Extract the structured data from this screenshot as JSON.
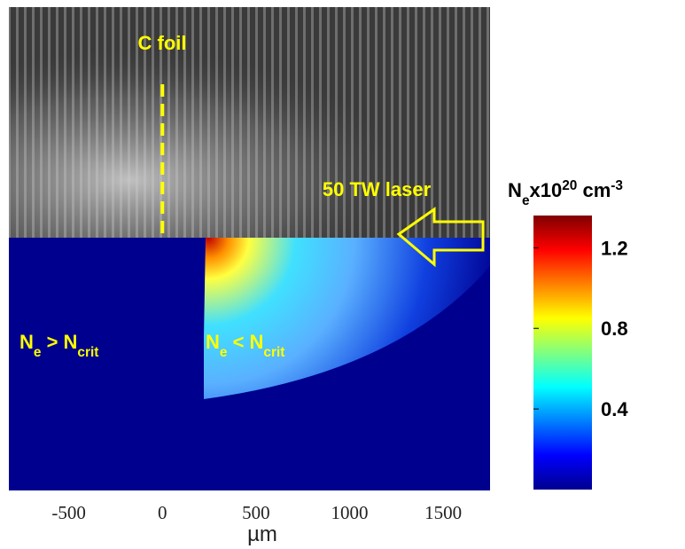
{
  "chart_data": {
    "type": "heatmap-figure",
    "x_label": "µm",
    "xlim": [
      -820,
      1750
    ],
    "xticks": [
      -500,
      0,
      500,
      1000,
      1500
    ],
    "foil_x": 0,
    "annotations": {
      "foil": "C foil",
      "laser": "50 TW laser",
      "left_region": [
        {
          "text": "N"
        },
        {
          "text": "e",
          "sub": true
        },
        {
          "text": " > N"
        },
        {
          "text": "crit",
          "sub": true
        }
      ],
      "right_region": [
        {
          "text": "N"
        },
        {
          "text": "e",
          "sub": true
        },
        {
          "text": " < N"
        },
        {
          "text": "crit",
          "sub": true
        }
      ]
    },
    "colorbar": {
      "label": [
        {
          "text": "N"
        },
        {
          "text": "e",
          "sub": true
        },
        {
          "text": "x10"
        },
        {
          "text": "20",
          "sup": true
        },
        {
          "text": " cm"
        },
        {
          "text": "-3",
          "sup": true
        }
      ],
      "clim": [
        0,
        1.36
      ],
      "ticks": [
        1.2,
        0.8,
        0.4
      ],
      "colormap": [
        "#00008f",
        "#0000ff",
        "#0080ff",
        "#00ffff",
        "#80ff80",
        "#ffff00",
        "#ff8000",
        "#ff0000",
        "#800000"
      ]
    }
  }
}
